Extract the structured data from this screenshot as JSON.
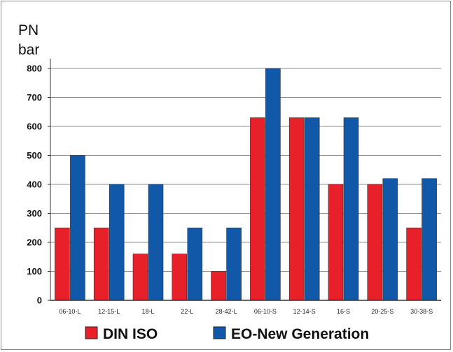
{
  "chart_data": {
    "type": "bar",
    "ylabel_line1": "PN",
    "ylabel_line2": "bar",
    "xlabel": "",
    "title": "",
    "ylim": [
      0,
      800
    ],
    "yticks": [
      0,
      100,
      200,
      300,
      400,
      500,
      600,
      700,
      800
    ],
    "grid": true,
    "legend_position": "bottom",
    "categories": [
      "06-10-L",
      "12-15-L",
      "18-L",
      "22-L",
      "28-42-L",
      "06-10-S",
      "12-14-S",
      "16-S",
      "20-25-S",
      "30-38-S"
    ],
    "series": [
      {
        "name": "DIN ISO",
        "color": "#e8202a",
        "values": [
          250,
          250,
          160,
          160,
          100,
          630,
          630,
          400,
          400,
          250
        ]
      },
      {
        "name": "EO-New Generation",
        "color": "#1158a8",
        "values": [
          500,
          400,
          400,
          250,
          250,
          800,
          630,
          630,
          420,
          420
        ]
      }
    ]
  }
}
